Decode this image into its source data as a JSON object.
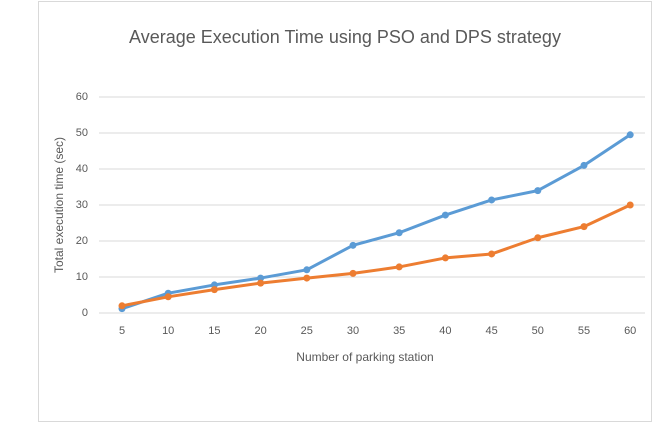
{
  "chart_data": {
    "type": "line",
    "title": "Average Execution Time using PSO and DPS strategy",
    "x_label": "Number of parking station",
    "y_label": "Total execution time (sec)",
    "categories": [
      5,
      10,
      15,
      20,
      25,
      30,
      35,
      40,
      45,
      50,
      55,
      60
    ],
    "series": [
      {
        "color": "#5b9bd5",
        "values": [
          1.2,
          5.5,
          7.8,
          9.7,
          12,
          18.8,
          22.3,
          27.2,
          31.4,
          34,
          41,
          49.5
        ]
      },
      {
        "color": "#ed7d31",
        "values": [
          2,
          4.5,
          6.5,
          8.3,
          9.7,
          11,
          12.8,
          15.3,
          16.4,
          20.9,
          24,
          30
        ]
      }
    ],
    "ylim": [
      0,
      60
    ],
    "yticks": [
      0,
      10,
      20,
      30,
      40,
      50,
      60
    ],
    "grid": true
  }
}
